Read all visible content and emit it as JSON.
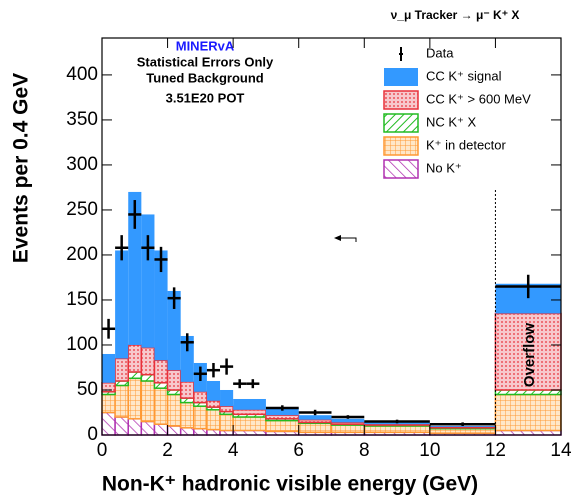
{
  "chart_data": {
    "type": "stacked_histogram",
    "title": "ν_μ Tracker → μ⁻ K⁺ X",
    "annotations": [
      "MINERvA",
      "Statistical Errors Only",
      "Tuned Background",
      "3.51E20 POT",
      "Overflow"
    ],
    "x_label": "Non-K⁺ hadronic visible energy (GeV)",
    "y_label": "Events per 0.4 GeV",
    "bins": [
      0,
      0.4,
      0.8,
      1.2,
      1.6,
      2.0,
      2.4,
      2.8,
      3.2,
      3.6,
      4.0,
      5.0,
      6.0,
      7.0,
      8.0,
      10.0,
      12.0,
      14.0
    ],
    "series": [
      {
        "name": "CC K⁺ signal",
        "color": "#3399ff",
        "values": [
          32,
          120,
          170,
          148,
          122,
          88,
          51,
          32,
          22,
          18,
          12,
          8,
          5,
          4,
          2,
          1,
          33
        ]
      },
      {
        "name": "CC K⁺ > 600 MeV",
        "color": "#e8303a",
        "values": [
          10,
          25,
          30,
          30,
          25,
          22,
          18,
          12,
          7,
          6,
          5,
          4,
          3,
          2,
          1,
          1,
          85
        ]
      },
      {
        "name": "NC K⁺ X",
        "color": "#22bb22",
        "values": [
          3,
          5,
          7,
          7,
          6,
          5,
          5,
          4,
          3,
          3,
          3,
          2,
          1,
          1,
          1,
          1,
          5
        ]
      },
      {
        "name": "K⁺ in detector",
        "color": "#ff9933",
        "values": [
          20,
          35,
          45,
          45,
          40,
          35,
          28,
          25,
          22,
          18,
          15,
          12,
          10,
          8,
          7,
          5,
          40
        ]
      },
      {
        "name": "No K⁺",
        "color": "#b030b0",
        "values": [
          25,
          20,
          18,
          15,
          12,
          10,
          8,
          7,
          6,
          5,
          5,
          4,
          3,
          3,
          3,
          2,
          5
        ]
      }
    ],
    "data": {
      "name": "Data",
      "x": [
        0.2,
        0.6,
        1.0,
        1.4,
        1.8,
        2.2,
        2.6,
        3.0,
        3.4,
        3.8,
        4.2,
        4.6,
        5.5,
        6.5,
        7.5,
        9,
        11,
        13
      ],
      "xerr": [
        0.2,
        0.2,
        0.2,
        0.2,
        0.2,
        0.2,
        0.2,
        0.2,
        0.2,
        0.2,
        0.2,
        0.2,
        0.5,
        0.5,
        0.5,
        1,
        1,
        1
      ],
      "values": [
        118,
        208,
        245,
        208,
        195,
        152,
        103,
        68,
        72,
        76,
        57,
        57,
        30,
        25,
        20,
        15,
        12,
        165
      ],
      "errors": [
        11,
        14,
        16,
        14,
        14,
        12,
        10,
        8,
        8,
        9,
        5,
        5,
        3,
        3,
        2,
        2,
        2,
        13
      ]
    },
    "xlim": [
      0,
      14
    ],
    "ylim": [
      0,
      441
    ],
    "xticks": [
      0,
      2,
      4,
      6,
      8,
      10,
      12,
      14
    ],
    "yticks": [
      0,
      50,
      100,
      150,
      200,
      250,
      300,
      350,
      400
    ]
  }
}
